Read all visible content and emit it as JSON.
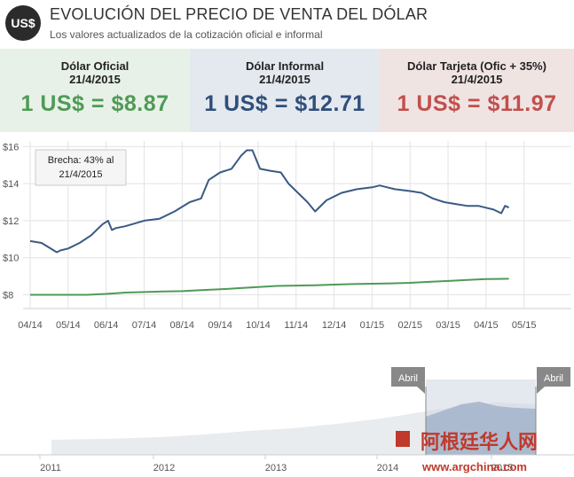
{
  "header": {
    "logo_text": "US$",
    "title": "EVOLUCIÓN DEL PRECIO DE VENTA DEL DÓLAR",
    "subtitle": "Los valores actualizados de la cotización oficial e informal"
  },
  "cards": {
    "oficial": {
      "label": "Dólar Oficial",
      "date": "21/4/2015",
      "value": "1 US$ = $8.87",
      "color": "#4f9a56"
    },
    "informal": {
      "label": "Dólar Informal",
      "date": "21/4/2015",
      "value": "1 US$ = $12.71",
      "color": "#2f4f7a"
    },
    "tarjeta": {
      "label": "Dólar Tarjeta (Ofic + 35%)",
      "date": "21/4/2015",
      "value": "1 US$ = $11.97",
      "color": "#c0504d"
    }
  },
  "tooltip": {
    "line1": "Brecha: 43% al",
    "line2": "21/4/2015"
  },
  "navigator": {
    "years": [
      "2011",
      "2012",
      "2013",
      "2014",
      "2015"
    ],
    "handle_left_label": "Abril",
    "handle_right_label": "Abril"
  },
  "watermark": {
    "logo_text": "阿根廷华人网",
    "url_text": "www.argchina.com"
  },
  "chart_data": {
    "type": "line",
    "ylim": [
      7.5,
      16.3
    ],
    "y_ticks": [
      "$8",
      "$10",
      "$12",
      "$14",
      "$16"
    ],
    "y_tick_values": [
      8,
      10,
      12,
      14,
      16
    ],
    "categories": [
      "04/14",
      "05/14",
      "06/14",
      "07/14",
      "08/14",
      "09/14",
      "10/14",
      "11/14",
      "12/14",
      "01/15",
      "02/15",
      "03/15",
      "04/15",
      "05/15"
    ],
    "grid": true,
    "series": [
      {
        "color": "#3a5a85",
        "x": [
          0,
          0.3,
          0.7,
          0.8,
          1.0,
          1.3,
          1.6,
          1.9,
          2.05,
          2.15,
          2.25,
          2.5,
          3.0,
          3.4,
          3.8,
          4.2,
          4.5,
          4.7,
          5.0,
          5.3,
          5.55,
          5.7,
          5.85,
          6.05,
          6.3,
          6.6,
          6.8,
          7.3,
          7.5,
          7.8,
          8.2,
          8.6,
          9.0,
          9.2,
          9.4,
          9.6,
          10.0,
          10.3,
          10.6,
          10.9,
          11.2,
          11.5,
          11.8,
          12.0,
          12.2,
          12.4,
          12.5,
          12.6
        ],
        "values": [
          10.9,
          10.8,
          10.3,
          10.4,
          10.5,
          10.8,
          11.2,
          11.8,
          12.0,
          11.5,
          11.6,
          11.7,
          12.0,
          12.1,
          12.5,
          13.0,
          13.2,
          14.2,
          14.6,
          14.8,
          15.5,
          15.8,
          15.8,
          14.8,
          14.7,
          14.6,
          14.0,
          13.0,
          12.5,
          13.1,
          13.5,
          13.7,
          13.8,
          13.9,
          13.8,
          13.7,
          13.6,
          13.5,
          13.2,
          13.0,
          12.9,
          12.8,
          12.8,
          12.7,
          12.6,
          12.4,
          12.8,
          12.71
        ]
      },
      {
        "color": "#4f9a56",
        "x": [
          0,
          1.5,
          2.0,
          2.5,
          3.0,
          3.5,
          4.0,
          4.5,
          5.0,
          5.5,
          6.0,
          6.5,
          7.0,
          7.5,
          8.0,
          8.5,
          9.0,
          9.5,
          10.0,
          10.5,
          11.0,
          11.5,
          12.0,
          12.3,
          12.6
        ],
        "values": [
          8.0,
          8.0,
          8.05,
          8.12,
          8.15,
          8.18,
          8.2,
          8.25,
          8.3,
          8.36,
          8.42,
          8.48,
          8.5,
          8.52,
          8.55,
          8.58,
          8.6,
          8.62,
          8.65,
          8.7,
          8.75,
          8.8,
          8.85,
          8.86,
          8.87
        ]
      }
    ]
  }
}
